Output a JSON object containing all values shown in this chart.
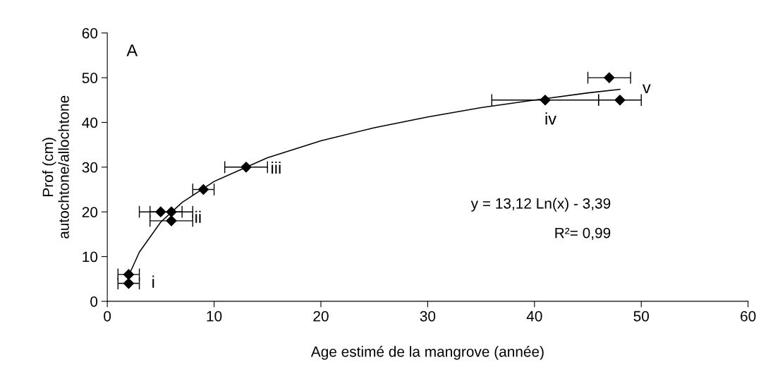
{
  "chart_data": {
    "type": "scatter",
    "xlabel": "Age estimé de la mangrove (année)",
    "ylabel": "Prof (cm)\nautochtone/allochtone",
    "xlim": [
      0,
      60
    ],
    "ylim": [
      0,
      60
    ],
    "xticks": [
      0,
      10,
      20,
      30,
      40,
      50,
      60
    ],
    "yticks": [
      0,
      10,
      20,
      30,
      40,
      50,
      60
    ],
    "grid": false,
    "legend": false,
    "marker": "diamond",
    "series": [
      {
        "color": "#000000",
        "x": [
          2,
          2,
          5,
          6,
          6,
          9,
          13,
          41,
          48,
          47
        ],
        "values": [
          4,
          6,
          20,
          20,
          18,
          25,
          30,
          45,
          45,
          50
        ],
        "xerrors": [
          1,
          1,
          2,
          2,
          2,
          1,
          2,
          5,
          2,
          2
        ]
      },
      {
        "type": "line",
        "color": "#000000",
        "marker": "none",
        "x": [
          2,
          3,
          5,
          7,
          10,
          15,
          20,
          25,
          30,
          35,
          40,
          45,
          48
        ],
        "values": [
          5.7,
          11,
          17.7,
          22.1,
          26.8,
          32.1,
          35.9,
          38.8,
          41.2,
          43.3,
          45,
          46.6,
          47.4
        ]
      }
    ],
    "annotations": [
      "A",
      "y = 13,12 Ln(x) - 3,39",
      "R²= 0,99",
      "i",
      "ii",
      "iii",
      "iv",
      "v"
    ]
  }
}
